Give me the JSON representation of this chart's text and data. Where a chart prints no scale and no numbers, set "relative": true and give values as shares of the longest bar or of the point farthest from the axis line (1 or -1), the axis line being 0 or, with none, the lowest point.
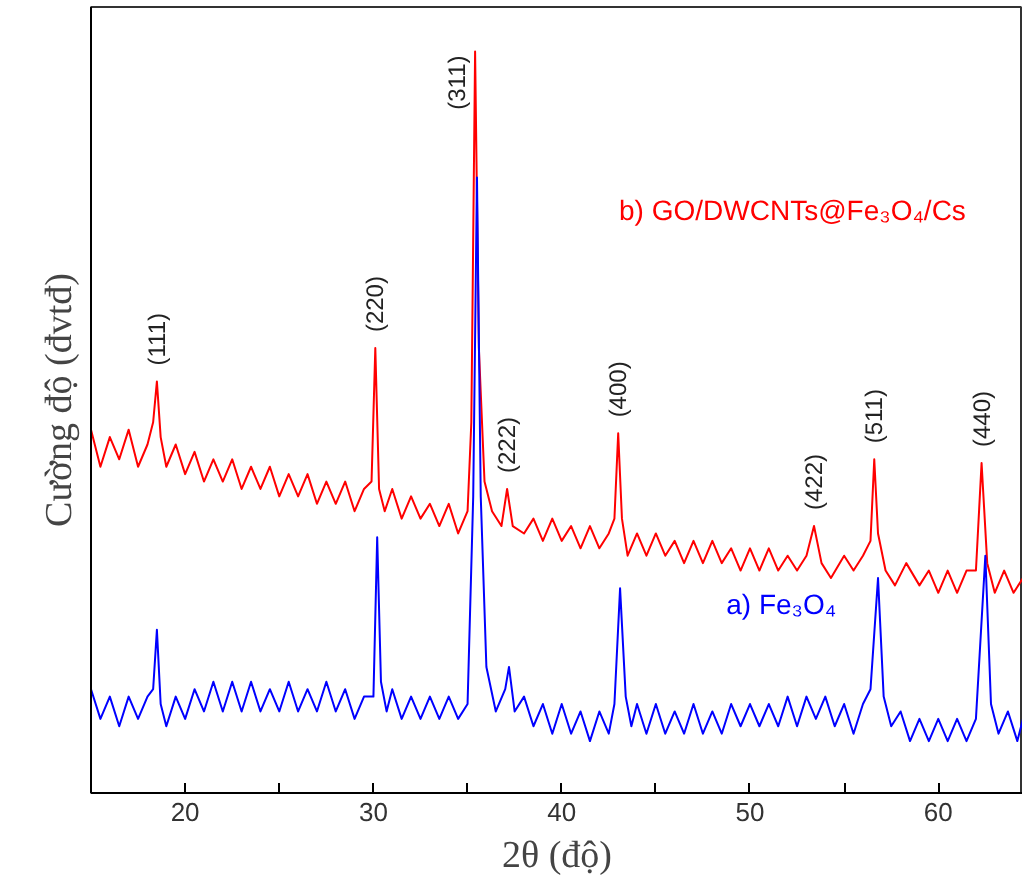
{
  "chart_data": {
    "type": "line",
    "relative": true,
    "xlabel": "2θ (độ)",
    "ylabel": "Cường độ (đvtđ)",
    "xlim": [
      15,
      64.5
    ],
    "xticks": [
      20,
      {
        "value": 25,
        "label": null
      },
      30,
      {
        "value": 35,
        "label": null
      },
      40,
      {
        "value": 45,
        "label": null
      },
      50,
      {
        "value": 55,
        "label": null
      },
      60
    ],
    "grid": false,
    "legend": false,
    "tick_labels": "x",
    "series": [
      {
        "name": "b) GO/DWCNTs@Fe₃O₄/Cs",
        "color": "#ff0000",
        "x": [
          15,
          15.5,
          16,
          16.5,
          17,
          17.5,
          18,
          18.3,
          18.5,
          18.7,
          19,
          19.5,
          20,
          20.5,
          21,
          21.5,
          22,
          22.5,
          23,
          23.5,
          24,
          24.5,
          25,
          25.5,
          26,
          26.5,
          27,
          27.5,
          28,
          28.5,
          29,
          29.5,
          29.9,
          30.1,
          30.3,
          30.6,
          31,
          31.5,
          32,
          32.5,
          33,
          33.5,
          34,
          34.5,
          35,
          35.2,
          35.4,
          35.6,
          35.9,
          36.3,
          36.8,
          37.1,
          37.4,
          38,
          38.5,
          39,
          39.5,
          40,
          40.5,
          41,
          41.5,
          42,
          42.5,
          42.8,
          43.0,
          43.2,
          43.5,
          44,
          44.5,
          45,
          45.5,
          46,
          46.5,
          47,
          47.5,
          48,
          48.5,
          49,
          49.5,
          50,
          50.5,
          51,
          51.5,
          52,
          52.5,
          53,
          53.4,
          53.8,
          54.3,
          55,
          55.5,
          56,
          56.4,
          56.6,
          56.8,
          57.2,
          57.7,
          58.3,
          59,
          59.5,
          60,
          60.5,
          61,
          61.5,
          62,
          62.3,
          62.6,
          63,
          63.5,
          64,
          64.5
        ],
        "values": [
          0.49,
          0.44,
          0.48,
          0.45,
          0.49,
          0.44,
          0.47,
          0.5,
          0.555,
          0.48,
          0.44,
          0.47,
          0.43,
          0.46,
          0.42,
          0.45,
          0.42,
          0.45,
          0.41,
          0.44,
          0.41,
          0.44,
          0.4,
          0.43,
          0.4,
          0.43,
          0.39,
          0.42,
          0.39,
          0.42,
          0.38,
          0.41,
          0.42,
          0.6,
          0.41,
          0.38,
          0.41,
          0.37,
          0.4,
          0.37,
          0.39,
          0.36,
          0.39,
          0.35,
          0.38,
          0.5,
          1.0,
          0.6,
          0.42,
          0.38,
          0.36,
          0.41,
          0.36,
          0.35,
          0.37,
          0.34,
          0.37,
          0.34,
          0.36,
          0.33,
          0.36,
          0.33,
          0.35,
          0.37,
          0.485,
          0.37,
          0.32,
          0.35,
          0.32,
          0.35,
          0.32,
          0.34,
          0.31,
          0.34,
          0.31,
          0.34,
          0.31,
          0.33,
          0.3,
          0.33,
          0.3,
          0.33,
          0.3,
          0.32,
          0.3,
          0.32,
          0.36,
          0.31,
          0.29,
          0.32,
          0.3,
          0.32,
          0.34,
          0.45,
          0.35,
          0.3,
          0.28,
          0.31,
          0.28,
          0.3,
          0.27,
          0.3,
          0.27,
          0.3,
          0.3,
          0.445,
          0.31,
          0.27,
          0.3,
          0.27,
          0.29
        ]
      },
      {
        "name": "a) Fe₃O₄",
        "color": "#0000ff",
        "x": [
          15,
          15.5,
          16,
          16.5,
          17,
          17.5,
          18,
          18.3,
          18.5,
          18.7,
          19,
          19.5,
          20,
          20.5,
          21,
          21.5,
          22,
          22.5,
          23,
          23.5,
          24,
          24.5,
          25,
          25.5,
          26,
          26.5,
          27,
          27.5,
          28,
          28.5,
          29,
          29.5,
          30,
          30.2,
          30.4,
          30.7,
          31,
          31.5,
          32,
          32.5,
          33,
          33.5,
          34,
          34.5,
          35,
          35.3,
          35.5,
          35.7,
          36,
          36.5,
          37,
          37.2,
          37.5,
          38,
          38.5,
          39,
          39.5,
          40,
          40.5,
          41,
          41.5,
          42,
          42.5,
          42.8,
          43.1,
          43.4,
          43.7,
          44,
          44.5,
          45,
          45.5,
          46,
          46.5,
          47,
          47.5,
          48,
          48.5,
          49,
          49.5,
          50,
          50.5,
          51,
          51.5,
          52,
          52.5,
          53,
          53.5,
          54,
          54.5,
          55,
          55.5,
          56,
          56.4,
          56.8,
          57.1,
          57.5,
          58,
          58.5,
          59,
          59.5,
          60,
          60.5,
          61,
          61.5,
          62,
          62.5,
          62.8,
          63.2,
          63.7,
          64.2,
          64.5
        ],
        "values": [
          0.14,
          0.1,
          0.13,
          0.09,
          0.13,
          0.1,
          0.13,
          0.14,
          0.22,
          0.12,
          0.09,
          0.13,
          0.1,
          0.14,
          0.11,
          0.15,
          0.11,
          0.15,
          0.11,
          0.15,
          0.11,
          0.14,
          0.11,
          0.15,
          0.11,
          0.14,
          0.11,
          0.15,
          0.11,
          0.14,
          0.1,
          0.13,
          0.13,
          0.345,
          0.15,
          0.11,
          0.14,
          0.1,
          0.13,
          0.1,
          0.13,
          0.1,
          0.13,
          0.1,
          0.12,
          0.4,
          0.83,
          0.4,
          0.17,
          0.11,
          0.14,
          0.17,
          0.11,
          0.13,
          0.09,
          0.12,
          0.08,
          0.12,
          0.08,
          0.11,
          0.07,
          0.11,
          0.08,
          0.12,
          0.276,
          0.13,
          0.09,
          0.12,
          0.08,
          0.12,
          0.08,
          0.11,
          0.08,
          0.12,
          0.08,
          0.11,
          0.08,
          0.12,
          0.09,
          0.12,
          0.09,
          0.12,
          0.09,
          0.13,
          0.09,
          0.13,
          0.1,
          0.13,
          0.09,
          0.12,
          0.08,
          0.12,
          0.14,
          0.29,
          0.13,
          0.09,
          0.11,
          0.07,
          0.1,
          0.07,
          0.1,
          0.07,
          0.1,
          0.07,
          0.1,
          0.32,
          0.12,
          0.08,
          0.11,
          0.07,
          0.1
        ]
      }
    ],
    "annotations": [
      {
        "text": "(111)",
        "x": 18.5,
        "y": 0.555
      },
      {
        "text": "(220)",
        "x": 30.1,
        "y": 0.6
      },
      {
        "text": "(311)",
        "x": 35.4,
        "y": 1.0
      },
      {
        "text": "(222)",
        "x": 37.1,
        "y": 0.41
      },
      {
        "text": "(400)",
        "x": 43.0,
        "y": 0.485
      },
      {
        "text": "(422)",
        "x": 53.4,
        "y": 0.36
      },
      {
        "text": "(511)",
        "x": 56.6,
        "y": 0.45
      },
      {
        "text": "(440)",
        "x": 62.3,
        "y": 0.445
      }
    ]
  }
}
